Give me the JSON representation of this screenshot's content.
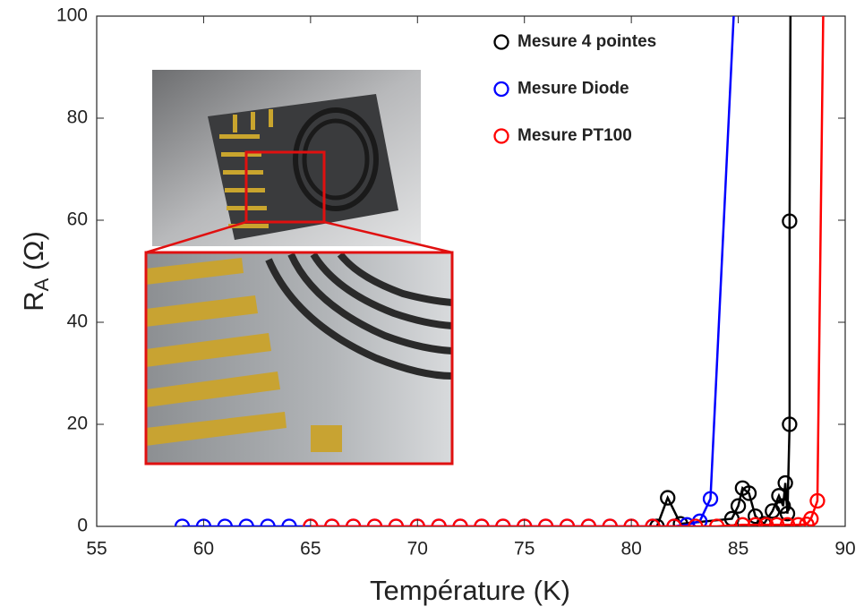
{
  "chart_data": {
    "type": "line",
    "xlabel": "Température (K)",
    "ylabel": [
      "R",
      "A",
      " (Ω)"
    ],
    "xlim": [
      55,
      90
    ],
    "xticks": [
      55,
      60,
      65,
      70,
      75,
      80,
      85,
      90
    ],
    "ylim": [
      0,
      100
    ],
    "yticks": [
      0,
      20,
      40,
      60,
      80,
      100
    ],
    "grid": false,
    "legend": "upper right",
    "series": [
      {
        "name": "Mesure 4 pointes",
        "color": "#000000",
        "x": [
          81.2,
          81.7,
          82.3,
          84.7,
          85.0,
          85.2,
          85.5,
          85.8,
          86.2,
          86.6,
          86.9,
          87.1,
          87.2,
          87.3,
          87.4,
          87.4,
          87.45
        ],
        "values": [
          0,
          5.6,
          0.5,
          1.5,
          4,
          7.5,
          6.5,
          2,
          0.5,
          3,
          6,
          4,
          8.5,
          2.5,
          20,
          59.8,
          110
        ]
      },
      {
        "name": "Mesure Diode",
        "color": "#0000ff",
        "x": [
          59,
          60,
          61,
          62,
          63,
          64,
          65,
          66,
          67,
          68,
          69,
          70,
          71,
          72,
          73,
          74,
          75,
          76,
          77,
          78,
          79,
          80,
          81,
          82,
          82.6,
          83.2,
          83.7,
          84.9
        ],
        "values": [
          0,
          0,
          0,
          0,
          0,
          0,
          0,
          0,
          0,
          0,
          0,
          0,
          0,
          0,
          0,
          0,
          0,
          0,
          0,
          0,
          0,
          0,
          0,
          0,
          0.3,
          1,
          5.4,
          110
        ]
      },
      {
        "name": "Mesure PT100",
        "color": "#ff0000",
        "x": [
          65,
          66,
          67,
          68,
          69,
          70,
          71,
          72,
          73,
          74,
          75,
          76,
          77,
          78,
          79,
          80,
          81,
          82,
          83,
          84,
          85.2,
          85.8,
          86.3,
          86.8,
          87.3,
          87.8,
          88.2,
          88.4,
          88.7,
          89.0
        ],
        "values": [
          0,
          0,
          0,
          0,
          0,
          0,
          0,
          0,
          0,
          0,
          0,
          0,
          0,
          0,
          0,
          0,
          0,
          0,
          0,
          0,
          0.3,
          0.3,
          0.3,
          0.3,
          0.3,
          0.3,
          0.4,
          1.5,
          5,
          110
        ]
      }
    ]
  }
}
